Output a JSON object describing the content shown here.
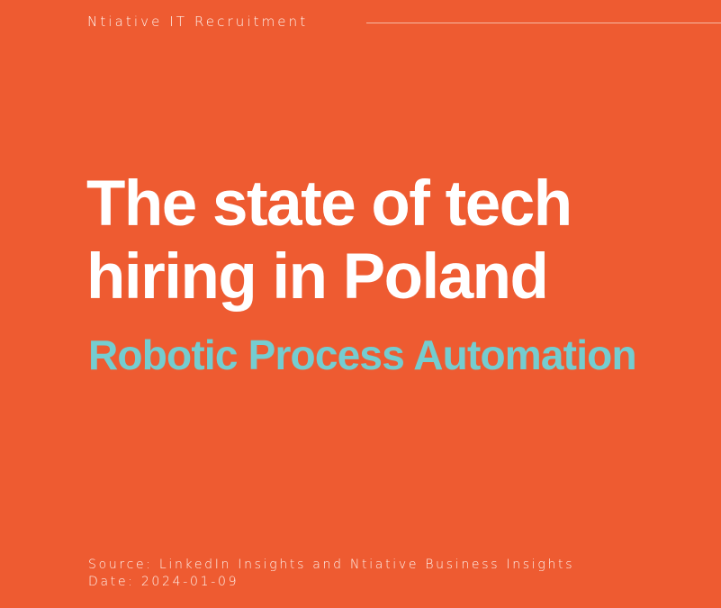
{
  "header": {
    "brand": "Ntiative IT Recruitment"
  },
  "hero": {
    "title_line1": "The state of tech",
    "title_line2": "hiring in Poland",
    "subtitle": "Robotic Process Automation"
  },
  "footer": {
    "source": "Source: LinkedIn Insights and Ntiative Business Insights",
    "date": "Date: 2024-01-09"
  },
  "colors": {
    "background": "#EE5B31",
    "accent": "#74CDD0",
    "text": "#FFFFFF"
  }
}
